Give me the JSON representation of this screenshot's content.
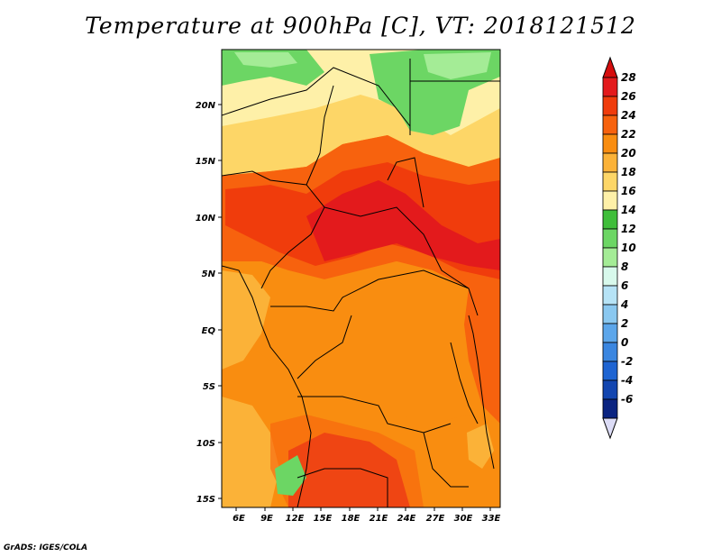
{
  "title": "Temperature at 900hPa [C], VT: 2018121512",
  "credit": "GrADS: IGES/COLA",
  "map": {
    "lon_labels": [
      "6E",
      "9E",
      "12E",
      "15E",
      "18E",
      "21E",
      "24E",
      "27E",
      "30E",
      "33E"
    ],
    "lat_labels": [
      "20N",
      "15N",
      "10N",
      "5N",
      "EQ",
      "5S",
      "10S",
      "15S"
    ]
  },
  "colorbar": {
    "labels": [
      "28",
      "26",
      "24",
      "22",
      "20",
      "18",
      "16",
      "14",
      "12",
      "10",
      "8",
      "6",
      "4",
      "2",
      "0",
      "-2",
      "-4",
      "-6"
    ],
    "colors": [
      "#e31a1c",
      "#f03c0c",
      "#f7620e",
      "#f98d10",
      "#fbb238",
      "#fdd667",
      "#fef0a8",
      "#3fbe3a",
      "#6cd664",
      "#a4ec96",
      "#d8f9ec",
      "#b6e3f6",
      "#8ac8f0",
      "#5ca6ea",
      "#3a86e0",
      "#1e64d2",
      "#1346b0",
      "#0b2481"
    ],
    "top_arrow_color": "#d50d0d",
    "bottom_arrow_color": "#dcdcf6"
  }
}
